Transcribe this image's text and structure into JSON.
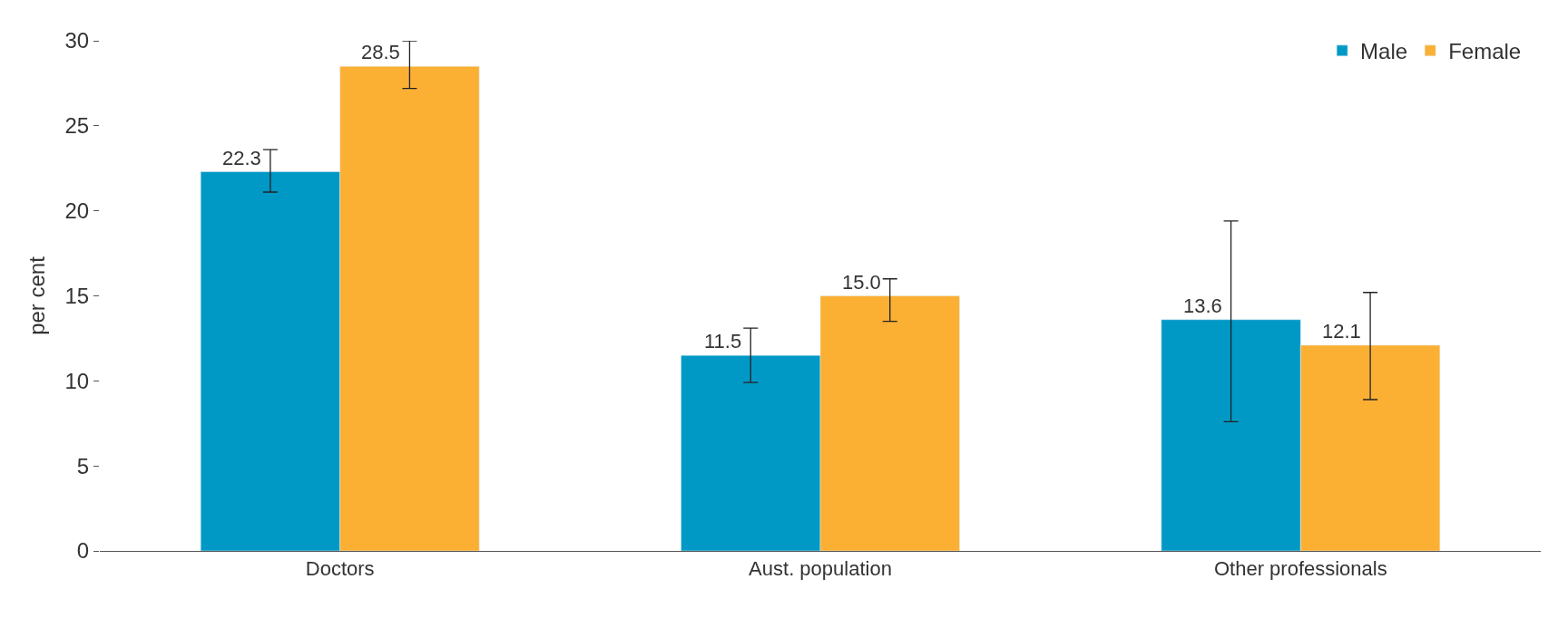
{
  "chart_data": {
    "type": "bar",
    "ylabel": "per cent",
    "categories": [
      "Doctors",
      "Aust. population",
      "Other professionals"
    ],
    "series": [
      {
        "name": "Male",
        "color": "#0099c6",
        "values": [
          22.3,
          11.5,
          13.6
        ],
        "value_labels": [
          "22.3",
          "11.5",
          "13.6"
        ],
        "errors": [
          [
            21.1,
            23.6
          ],
          [
            9.9,
            13.1
          ],
          [
            7.6,
            19.4
          ]
        ]
      },
      {
        "name": "Female",
        "color": "#fbb034",
        "values": [
          28.5,
          15.0,
          12.1
        ],
        "value_labels": [
          "28.5",
          "15.0",
          "12.1"
        ],
        "errors": [
          [
            27.2,
            30.0
          ],
          [
            13.5,
            16.0
          ],
          [
            8.9,
            15.2
          ]
        ]
      }
    ],
    "ylim": [
      0,
      30
    ],
    "yticks": [
      0,
      5,
      10,
      15,
      20,
      25,
      30
    ],
    "legend": "top right"
  }
}
